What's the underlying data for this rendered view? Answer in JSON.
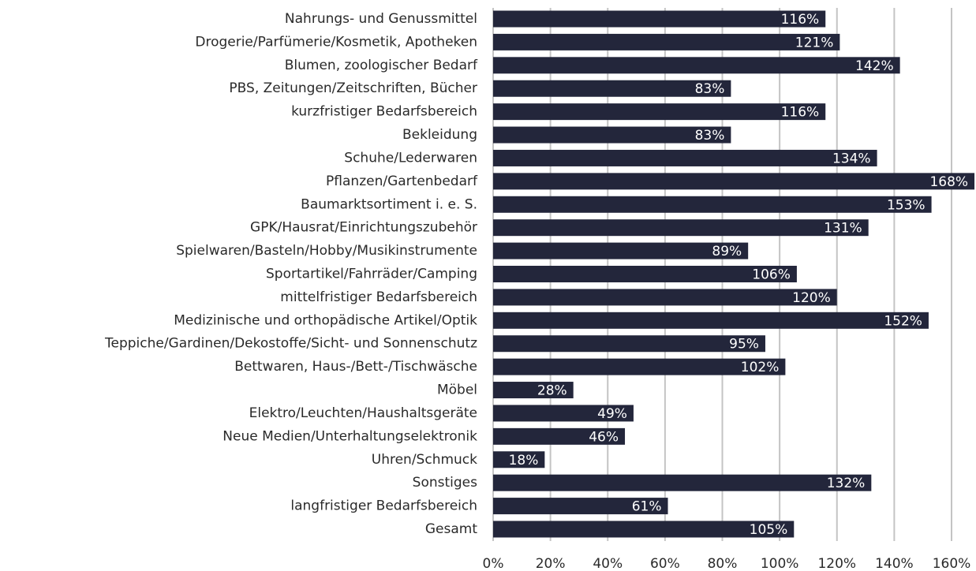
{
  "chart_data": {
    "type": "bar",
    "orientation": "horizontal",
    "categories": [
      "Nahrungs- und Genussmittel",
      "Drogerie/Parfümerie/Kosmetik, Apotheken",
      "Blumen, zoologischer Bedarf",
      "PBS, Zeitungen/Zeitschriften, Bücher",
      "kurzfristiger Bedarfsbereich",
      "Bekleidung",
      "Schuhe/Lederwaren",
      "Pflanzen/Gartenbedarf",
      "Baumarktsortiment i. e. S.",
      "GPK/Hausrat/Einrichtungszubehör",
      "Spielwaren/Basteln/Hobby/Musikinstrumente",
      "Sportartikel/Fahrräder/Camping",
      "mittelfristiger Bedarfsbereich",
      "Medizinische und orthopädische Artikel/Optik",
      "Teppiche/Gardinen/Dekostoffe/Sicht- und Sonnenschutz",
      "Bettwaren, Haus-/Bett-/Tischwäsche",
      "Möbel",
      "Elektro/Leuchten/Haushaltsgeräte",
      "Neue Medien/Unterhaltungselektronik",
      "Uhren/Schmuck",
      "Sonstiges",
      "langfristiger Bedarfsbereich",
      "Gesamt"
    ],
    "values": [
      116,
      121,
      142,
      83,
      116,
      83,
      134,
      168,
      153,
      131,
      89,
      106,
      120,
      152,
      95,
      102,
      28,
      49,
      46,
      18,
      132,
      61,
      105
    ],
    "value_labels": [
      "116%",
      "121%",
      "142%",
      "83%",
      "116%",
      "83%",
      "134%",
      "168%",
      "153%",
      "131%",
      "89%",
      "106%",
      "120%",
      "152%",
      "95%",
      "102%",
      "28%",
      "49%",
      "46%",
      "18%",
      "132%",
      "61%",
      "105%"
    ],
    "color": "#23263b",
    "xlim": [
      0,
      160
    ],
    "xticks": [
      {
        "value": 0,
        "label": "0%"
      },
      {
        "value": 20,
        "label": "20%"
      },
      {
        "value": 40,
        "label": "40%"
      },
      {
        "value": 60,
        "label": "60%"
      },
      {
        "value": 80,
        "label": "80%"
      },
      {
        "value": 100,
        "label": "100%"
      },
      {
        "value": 120,
        "label": "120%"
      },
      {
        "value": 140,
        "label": "140%"
      },
      {
        "value": 160,
        "label": "160%"
      }
    ],
    "grid": true
  }
}
